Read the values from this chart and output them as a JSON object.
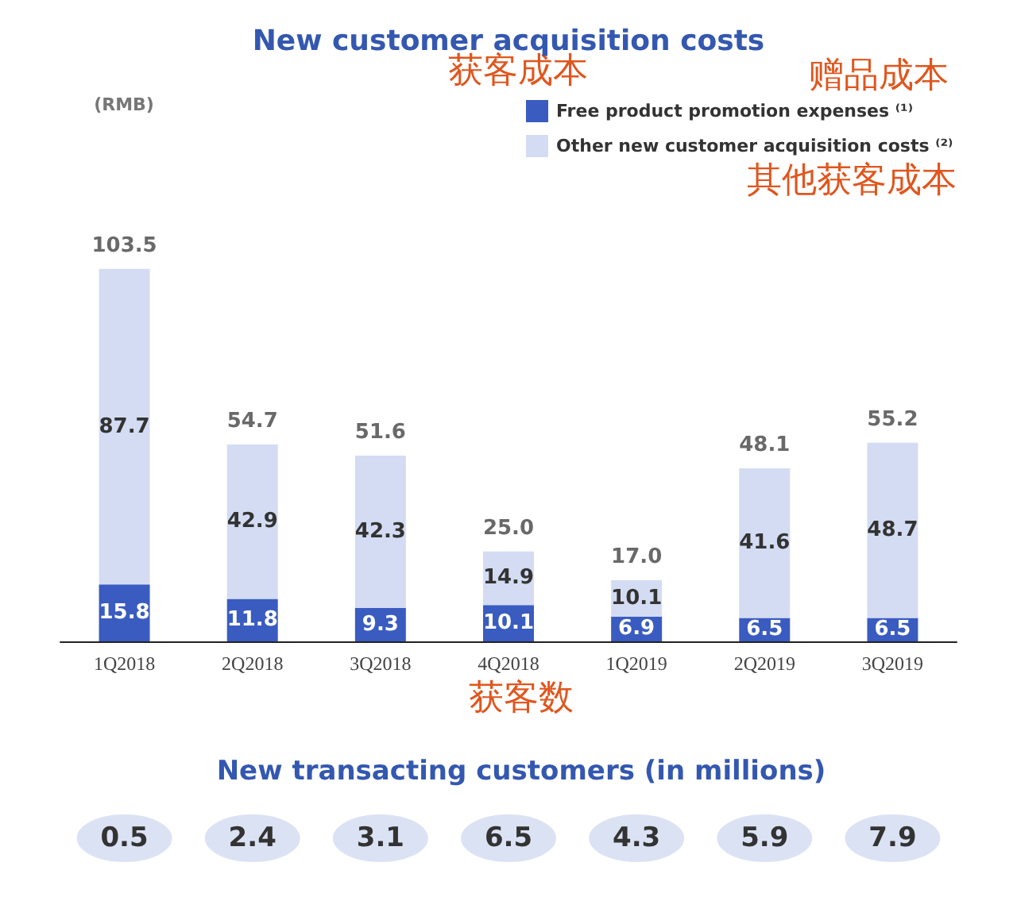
{
  "chart_data": {
    "type": "bar",
    "title": "New customer acquisition costs",
    "stacked": true,
    "data_labels": true,
    "legend": "top right",
    "tick_labels": "x",
    "categories": [
      "1Q2018",
      "2Q2018",
      "3Q2018",
      "4Q2018",
      "1Q2019",
      "2Q2019",
      "3Q2019"
    ],
    "series": [
      {
        "name": "Free product promotion expenses ⁽¹⁾",
        "color": "#3a5cc0",
        "values": [
          15.8,
          11.8,
          9.3,
          10.1,
          6.9,
          6.5,
          6.5
        ]
      },
      {
        "name": "Other new customer acquisition costs ⁽²⁾",
        "color": "#d3dcf2",
        "values": [
          87.7,
          42.9,
          42.3,
          14.9,
          10.1,
          41.6,
          48.7
        ]
      }
    ],
    "totals": [
      "103.5",
      "54.7",
      "51.6",
      "25.0",
      "17.0",
      "48.1",
      "55.2"
    ],
    "annotations": [
      "(RMB)",
      "获客成本",
      "赠品成本",
      "其他获客成本",
      "获客数",
      "New transacting customers (in millions)",
      "0.5",
      "2.4",
      "3.1",
      "6.5",
      "4.3",
      "5.9",
      "7.9"
    ]
  }
}
